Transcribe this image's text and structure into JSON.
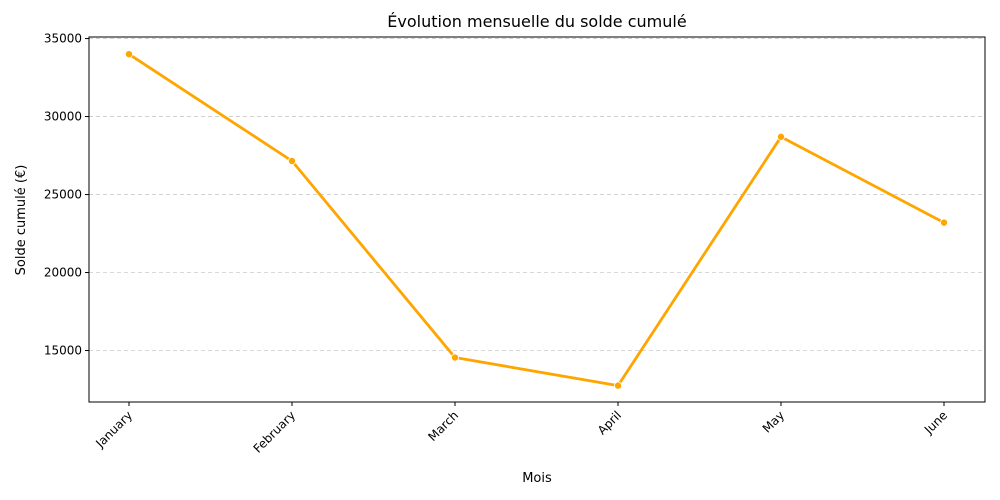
{
  "chart_data": {
    "type": "line",
    "title": "Évolution mensuelle du solde cumulé",
    "xlabel": "Mois",
    "ylabel": "Solde cumulé (€)",
    "categories": [
      "January",
      "February",
      "March",
      "April",
      "May",
      "June"
    ],
    "series": [
      {
        "values": [
          34000,
          27150,
          14550,
          12750,
          28700,
          23200
        ]
      }
    ],
    "ylim": [
      11700,
      35100
    ],
    "yticks": [
      15000,
      20000,
      25000,
      30000,
      35000
    ],
    "grid": "y-dashed",
    "line_color": "#FFA500",
    "marker_color": "#FFA500"
  }
}
